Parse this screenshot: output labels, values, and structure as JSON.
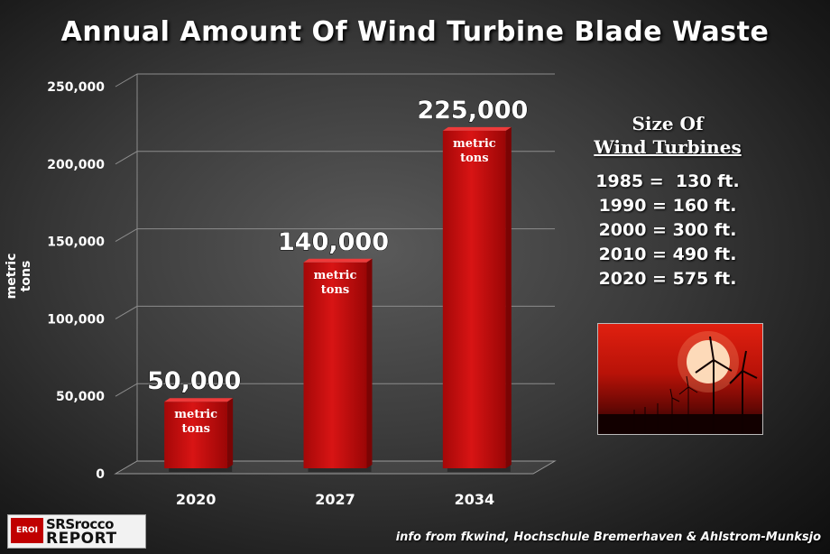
{
  "title": "Annual Amount Of Wind Turbine Blade Waste",
  "chart_data": {
    "type": "bar",
    "title": "Annual Amount Of Wind Turbine Blade Waste",
    "xlabel": "",
    "ylabel": "metric tons",
    "categories": [
      "2020",
      "2027",
      "2034"
    ],
    "values": [
      50000,
      140000,
      225000
    ],
    "value_labels": [
      "50,000",
      "140,000",
      "225,000"
    ],
    "bar_inner_label_line1": "metric",
    "bar_inner_label_line2": "tons",
    "ylim": [
      0,
      250000
    ],
    "yticks": [
      0,
      50000,
      100000,
      150000,
      200000,
      250000
    ],
    "ytick_labels": [
      "0",
      "50,000",
      "100,000",
      "150,000",
      "200,000",
      "250,000"
    ],
    "grid": true,
    "bar_color": "#d11010"
  },
  "sidebar": {
    "title_line1": "Size Of",
    "title_line2": "Wind Turbines",
    "items": [
      "1985 =  130 ft.",
      "1990 = 160 ft.",
      "2000 = 300 ft.",
      "2010 = 490 ft.",
      "2020 = 575 ft."
    ]
  },
  "logo": {
    "badge": "EROI",
    "line1": "SRSrocco",
    "line2": "REPORT"
  },
  "source": "info from fkwind, Hochschule Bremerhaven & Ahlstrom-Munksjo"
}
